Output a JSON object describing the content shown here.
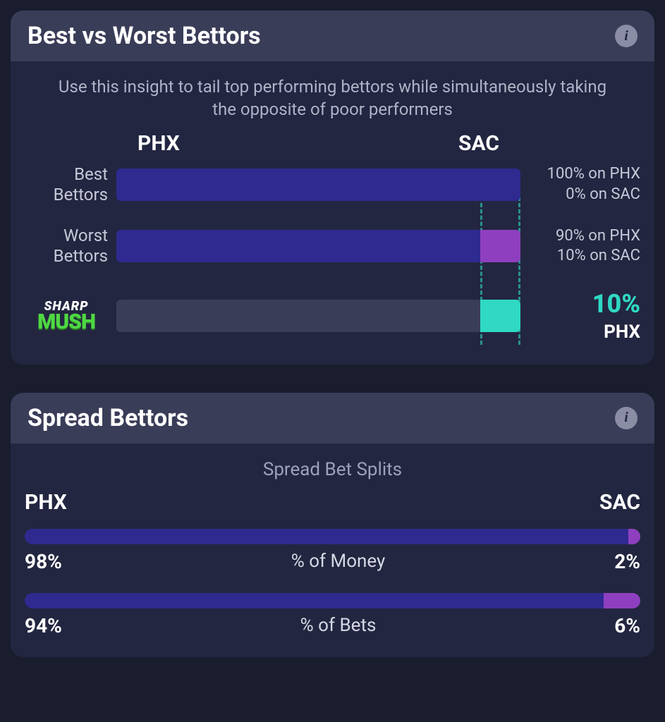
{
  "colors": {
    "page_bg": "#1a1d2e",
    "card_bg": "#232640",
    "header_bg": "#3a3d58",
    "bar_left": "#2e2a8f",
    "bar_right": "#8e3fbf",
    "accent_teal": "#2fd9c4",
    "muted_track": "#3a3d58",
    "text_muted": "#b0b3c7",
    "logo_green": "#4fd843"
  },
  "card1": {
    "title": "Best vs Worst Bettors",
    "subtitle": "Use this insight to tail top performing bettors while simultaneously taking the opposite of poor performers",
    "team_a": "PHX",
    "team_b": "SAC",
    "rows": {
      "best": {
        "label": "Best Bettors",
        "pct_a": 100,
        "pct_b": 0,
        "right_line1": "100% on PHX",
        "right_line2": "0% on SAC"
      },
      "worst": {
        "label": "Worst Bettors",
        "pct_a": 90,
        "pct_b": 10,
        "right_line1": "90% on PHX",
        "right_line2": "10% on SAC"
      },
      "sharpmush": {
        "logo_top": "SHARP",
        "logo_bottom": "MUSH",
        "fill_pct": 10,
        "result_pct": "10%",
        "result_team": "PHX"
      }
    },
    "guide_lines": {
      "line1_pct": 90,
      "line2_pct": 100
    }
  },
  "card2": {
    "title": "Spread Bettors",
    "subtitle": "Spread Bet Splits",
    "team_a": "PHX",
    "team_b": "SAC",
    "money": {
      "label": "% of Money",
      "pct_a": 98,
      "pct_b": 2,
      "pct_a_label": "98%",
      "pct_b_label": "2%"
    },
    "bets": {
      "label": "% of Bets",
      "pct_a": 94,
      "pct_b": 6,
      "pct_a_label": "94%",
      "pct_b_label": "6%"
    }
  }
}
